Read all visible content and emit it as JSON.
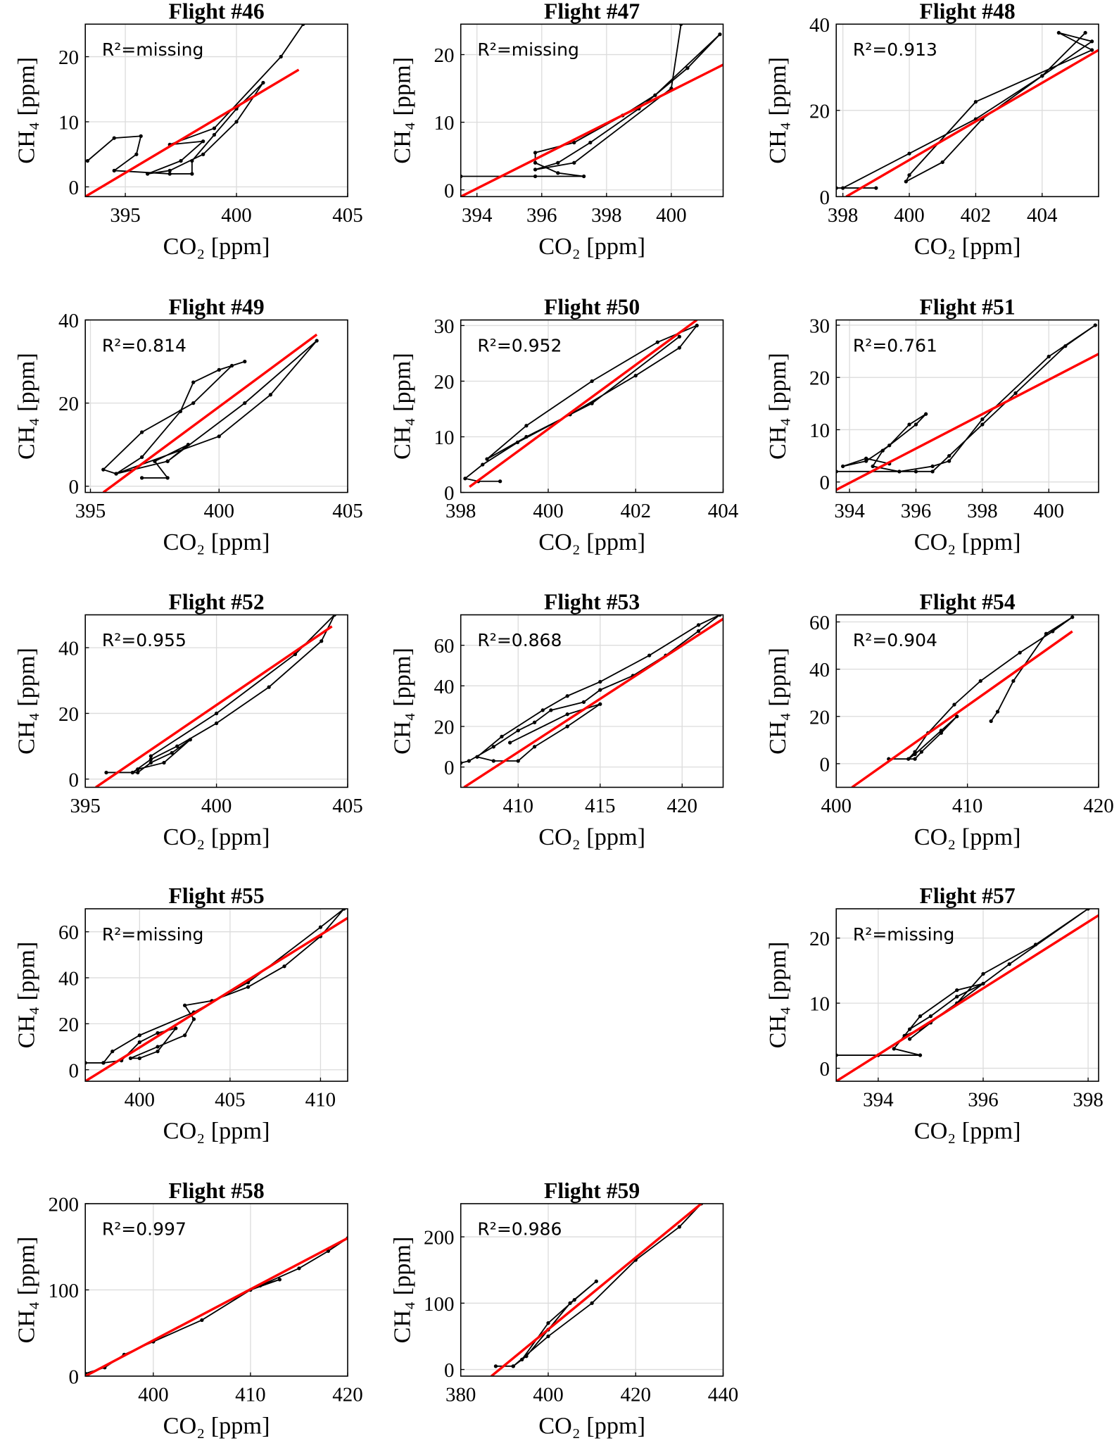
{
  "chart_data": [
    {
      "type": "line",
      "title": "Flight #46",
      "xlabel": "CO₂ [ppm]",
      "ylabel": "CH₄ [ppm]",
      "annotation": "R²=missing",
      "xlim": [
        393.2,
        405
      ],
      "xticks": [
        395,
        400,
        405
      ],
      "ylim": [
        -1.5,
        25
      ],
      "yticks": [
        0,
        10,
        20
      ],
      "grid": true,
      "series": [
        {
          "color": "#000000",
          "x": [
            393.3,
            394.5,
            395.7,
            395.5,
            394.5,
            397,
            398,
            398,
            399,
            400,
            401.2,
            400,
            398.5,
            397,
            396,
            397.5,
            398.5,
            397,
            399,
            402,
            403
          ],
          "values": [
            4,
            7.5,
            7.8,
            5,
            2.5,
            2,
            2,
            4,
            8,
            12,
            16,
            10,
            5,
            2.5,
            2,
            4,
            7,
            6.5,
            9,
            20,
            25
          ]
        },
        {
          "color": "#ff0000",
          "x": [
            393.2,
            402.8
          ],
          "values": [
            -1.5,
            18
          ]
        }
      ]
    },
    {
      "type": "line",
      "title": "Flight #47",
      "xlabel": "CO₂ [ppm]",
      "ylabel": "CH₄ [ppm]",
      "annotation": "R²=missing",
      "xlim": [
        393.5,
        401.6
      ],
      "xticks": [
        394,
        396,
        398,
        400
      ],
      "ylim": [
        -1,
        24.5
      ],
      "yticks": [
        0,
        10,
        20
      ],
      "grid": true,
      "series": [
        {
          "color": "#000000",
          "x": [
            393.5,
            395.8,
            397.3,
            396.5,
            395.8,
            395.8,
            397,
            398.5,
            399.5,
            401.5,
            400.5,
            399,
            397.5,
            396.5,
            395.8,
            397,
            400,
            400.3
          ],
          "values": [
            2,
            2,
            2,
            2.5,
            4,
            5.5,
            7,
            11,
            14,
            23,
            18,
            12,
            7,
            4,
            3,
            4,
            15,
            24.5
          ]
        },
        {
          "color": "#ff0000",
          "x": [
            393.5,
            401.6
          ],
          "values": [
            -1,
            18.5
          ]
        }
      ]
    },
    {
      "type": "line",
      "title": "Flight #48",
      "xlabel": "CO₂ [ppm]",
      "ylabel": "CH₄ [ppm]",
      "annotation": "R²=0.913",
      "xlim": [
        397.8,
        405.7
      ],
      "xticks": [
        398,
        400,
        402,
        404
      ],
      "ylim": [
        0,
        40
      ],
      "yticks": [
        0,
        20,
        40
      ],
      "grid": true,
      "series": [
        {
          "color": "#000000",
          "x": [
            397.8,
            399,
            398,
            400,
            402,
            404,
            405.5,
            404.5,
            405.5,
            402,
            400,
            399.9,
            401,
            402.2,
            404,
            405.3
          ],
          "values": [
            2,
            2,
            2,
            10,
            18,
            28,
            36,
            38,
            34,
            22,
            5,
            3.5,
            8,
            18,
            28,
            38
          ]
        },
        {
          "color": "#ff0000",
          "x": [
            398.1,
            405.7
          ],
          "values": [
            0,
            34
          ]
        }
      ]
    },
    {
      "type": "line",
      "title": "Flight #49",
      "xlabel": "CO₂ [ppm]",
      "ylabel": "CH₄ [ppm]",
      "annotation": "R²=0.814",
      "xlim": [
        394.8,
        405
      ],
      "xticks": [
        395,
        400,
        405
      ],
      "ylim": [
        -1.5,
        40
      ],
      "yticks": [
        0,
        20,
        40
      ],
      "grid": true,
      "series": [
        {
          "color": "#000000",
          "x": [
            397,
            398,
            397.5,
            398.8,
            398,
            396,
            395.5,
            397,
            399,
            400.5,
            401,
            400,
            399,
            398.5,
            397,
            396,
            400,
            402,
            403.8,
            401,
            398
          ],
          "values": [
            2,
            2,
            6,
            10,
            6,
            3,
            4,
            13,
            20,
            29,
            30,
            28,
            25,
            18,
            7,
            3,
            12,
            22,
            35,
            20,
            6
          ]
        },
        {
          "color": "#ff0000",
          "x": [
            395.5,
            403.8
          ],
          "values": [
            -1.5,
            36.5
          ]
        }
      ]
    },
    {
      "type": "line",
      "title": "Flight #50",
      "xlabel": "CO₂ [ppm]",
      "ylabel": "CH₄ [ppm]",
      "annotation": "R²=0.952",
      "xlim": [
        398,
        404
      ],
      "xticks": [
        398,
        400,
        402,
        404
      ],
      "ylim": [
        0,
        31
      ],
      "yticks": [
        0,
        10,
        20,
        30
      ],
      "grid": true,
      "series": [
        {
          "color": "#000000",
          "x": [
            398.9,
            398.4,
            398.1,
            398.5,
            399.3,
            400.5,
            402,
            403,
            403.4,
            402.5,
            401,
            399.5,
            398.6,
            399.5,
            401,
            403
          ],
          "values": [
            2,
            2,
            2.5,
            5,
            9,
            14,
            21,
            26,
            30,
            27,
            20,
            12,
            6,
            10,
            16,
            28
          ]
        },
        {
          "color": "#ff0000",
          "x": [
            398.2,
            403.4
          ],
          "values": [
            1,
            31
          ]
        }
      ]
    },
    {
      "type": "line",
      "title": "Flight #51",
      "xlabel": "CO₂ [ppm]",
      "ylabel": "CH₄ [ppm]",
      "annotation": "R²=0.761",
      "xlim": [
        393.6,
        401.5
      ],
      "xticks": [
        394,
        396,
        398,
        400
      ],
      "ylim": [
        -2,
        31
      ],
      "yticks": [
        0,
        10,
        20,
        30
      ],
      "grid": true,
      "series": [
        {
          "color": "#000000",
          "x": [
            393.6,
            396,
            396.5,
            397,
            398,
            399,
            400.5,
            401.4,
            400,
            398,
            397,
            396.5,
            395.5,
            394.7,
            395,
            396,
            396.3,
            395.8,
            395.2,
            394.5,
            393.8,
            394.5,
            395.2
          ],
          "values": [
            2,
            2,
            2,
            5,
            11,
            17,
            26,
            30,
            24,
            12,
            4,
            3,
            2,
            3,
            6,
            11,
            13,
            11,
            7,
            4,
            3,
            4.5,
            3.5
          ]
        },
        {
          "color": "#ff0000",
          "x": [
            393.6,
            401.5
          ],
          "values": [
            -1.5,
            24.5
          ]
        }
      ]
    },
    {
      "type": "line",
      "title": "Flight #52",
      "xlabel": "CO₂ [ppm]",
      "ylabel": "CH₄ [ppm]",
      "annotation": "R²=0.955",
      "xlim": [
        395,
        405
      ],
      "xticks": [
        395,
        400,
        405
      ],
      "ylim": [
        -2.5,
        50
      ],
      "yticks": [
        0,
        20,
        40
      ],
      "grid": true,
      "series": [
        {
          "color": "#000000",
          "x": [
            395.8,
            397,
            397.5,
            398.3,
            399,
            398,
            397,
            396.8,
            397.5,
            398.5,
            400,
            402,
            404,
            404.5,
            403,
            400,
            397.5
          ],
          "values": [
            2,
            2,
            5,
            8,
            12,
            5,
            3,
            2,
            6,
            10,
            17,
            28,
            42,
            50,
            38,
            20,
            7
          ]
        },
        {
          "color": "#ff0000",
          "x": [
            395.4,
            404.4
          ],
          "values": [
            -2.5,
            46.5
          ]
        }
      ]
    },
    {
      "type": "line",
      "title": "Flight #53",
      "xlabel": "CO₂ [ppm]",
      "ylabel": "CH₄ [ppm]",
      "annotation": "R²=0.868",
      "xlim": [
        406.5,
        422.5
      ],
      "xticks": [
        410,
        415,
        420
      ],
      "ylim": [
        -10,
        75
      ],
      "yticks": [
        0,
        20,
        40,
        60
      ],
      "grid": true,
      "series": [
        {
          "color": "#000000",
          "x": [
            406.5,
            407,
            408.5,
            410,
            411,
            412,
            414,
            415,
            417,
            419,
            421,
            422.3,
            421,
            418,
            415,
            413,
            411.5,
            409,
            407.5,
            408.5,
            410,
            411,
            413,
            415,
            413,
            409.5
          ],
          "values": [
            2,
            3,
            10,
            18,
            22,
            28,
            32,
            38,
            45,
            55,
            67,
            75,
            70,
            55,
            42,
            35,
            28,
            15,
            5,
            3,
            3,
            10,
            20,
            31,
            26,
            12
          ]
        },
        {
          "color": "#ff0000",
          "x": [
            406.7,
            422.5
          ],
          "values": [
            -10,
            73
          ]
        }
      ]
    },
    {
      "type": "line",
      "title": "Flight #54",
      "xlabel": "CO₂ [ppm]",
      "ylabel": "CH₄ [ppm]",
      "annotation": "R²=0.904",
      "xlim": [
        400,
        420
      ],
      "xticks": [
        400,
        410,
        420
      ],
      "ylim": [
        -10,
        63
      ],
      "yticks": [
        0,
        20,
        40,
        60
      ],
      "grid": true,
      "series": [
        {
          "color": "#000000",
          "x": [
            404,
            406,
            406.5,
            408,
            409.2,
            408,
            406,
            405.5,
            406,
            407,
            409,
            411,
            414,
            416.5,
            418,
            416,
            413.5,
            412.3,
            411.8
          ],
          "values": [
            2,
            2,
            5,
            13,
            20,
            14,
            4,
            2,
            5,
            13,
            25,
            35,
            47,
            56,
            62,
            55,
            35,
            22,
            18
          ]
        },
        {
          "color": "#ff0000",
          "x": [
            401.2,
            418
          ],
          "values": [
            -10,
            56
          ]
        }
      ]
    },
    {
      "type": "line",
      "title": "Flight #55",
      "xlabel": "CO₂ [ppm]",
      "ylabel": "CH₄ [ppm]",
      "annotation": "R²=missing",
      "xlim": [
        397,
        411.5
      ],
      "xticks": [
        400,
        405,
        410
      ],
      "ylim": [
        -5,
        70
      ],
      "yticks": [
        0,
        20,
        40,
        60
      ],
      "grid": true,
      "series": [
        {
          "color": "#000000",
          "x": [
            397,
            398,
            399,
            400,
            401,
            402,
            401,
            400,
            399.5,
            401,
            402.5,
            403,
            402.5,
            404,
            406,
            408,
            410,
            411.3,
            410,
            406,
            403,
            400,
            398.5,
            398
          ],
          "values": [
            3,
            3,
            4,
            12,
            16,
            18,
            8,
            5,
            5,
            10,
            15,
            22,
            28,
            30,
            36,
            45,
            58,
            70,
            62,
            38,
            25,
            15,
            8,
            3
          ]
        },
        {
          "color": "#ff0000",
          "x": [
            397,
            411.5
          ],
          "values": [
            -5,
            66
          ]
        }
      ]
    },
    {
      "type": "line",
      "title": "Flight #57",
      "xlabel": "CO₂ [ppm]",
      "ylabel": "CH₄ [ppm]",
      "annotation": "R²=missing",
      "xlim": [
        393.2,
        398.2
      ],
      "xticks": [
        394,
        396,
        398
      ],
      "ylim": [
        -2,
        24.5
      ],
      "yticks": [
        0,
        10,
        20
      ],
      "grid": true,
      "series": [
        {
          "color": "#000000",
          "x": [
            393.2,
            394,
            394.8,
            394.3,
            394.6,
            395,
            395.5,
            396,
            395.5,
            394.8,
            394.5,
            394.8,
            395.5,
            396,
            397,
            398,
            396.5,
            395,
            394.6
          ],
          "values": [
            2,
            2,
            2,
            3,
            6,
            8,
            11,
            13,
            12,
            8,
            5,
            6,
            10,
            14.5,
            19,
            24.5,
            16,
            7,
            4.5
          ]
        },
        {
          "color": "#ff0000",
          "x": [
            393.2,
            398.2
          ],
          "values": [
            -2,
            23.5
          ]
        }
      ]
    },
    {
      "type": "line",
      "title": "Flight #58",
      "xlabel": "CO₂ [ppm]",
      "ylabel": "CH₄ [ppm]",
      "annotation": "R²=0.997",
      "xlim": [
        393,
        420
      ],
      "xticks": [
        400,
        410,
        420
      ],
      "ylim": [
        0,
        200
      ],
      "yticks": [
        0,
        100,
        200
      ],
      "grid": true,
      "series": [
        {
          "color": "#000000",
          "x": [
            393,
            395,
            397,
            400,
            405,
            410,
            413,
            411,
            415,
            418,
            420
          ],
          "values": [
            3,
            10,
            25,
            40,
            65,
            100,
            112,
            105,
            125,
            145,
            160
          ]
        },
        {
          "color": "#ff0000",
          "x": [
            393,
            420
          ],
          "values": [
            0,
            160
          ]
        }
      ]
    },
    {
      "type": "line",
      "title": "Flight #59",
      "xlabel": "CO₂ [ppm]",
      "ylabel": "CH₄ [ppm]",
      "annotation": "R²=0.986",
      "xlim": [
        380,
        440
      ],
      "xticks": [
        380,
        400,
        420,
        440
      ],
      "ylim": [
        -10,
        250
      ],
      "yticks": [
        0,
        100,
        200
      ],
      "grid": true,
      "series": [
        {
          "color": "#000000",
          "x": [
            388,
            392,
            395,
            400,
            405,
            411,
            406,
            400,
            394,
            392,
            400,
            410,
            420,
            430,
            435
          ],
          "values": [
            5,
            5,
            20,
            60,
            100,
            133,
            105,
            70,
            15,
            5,
            50,
            100,
            165,
            215,
            250
          ]
        },
        {
          "color": "#ff0000",
          "x": [
            387,
            435
          ],
          "values": [
            -10,
            250
          ]
        }
      ]
    }
  ]
}
